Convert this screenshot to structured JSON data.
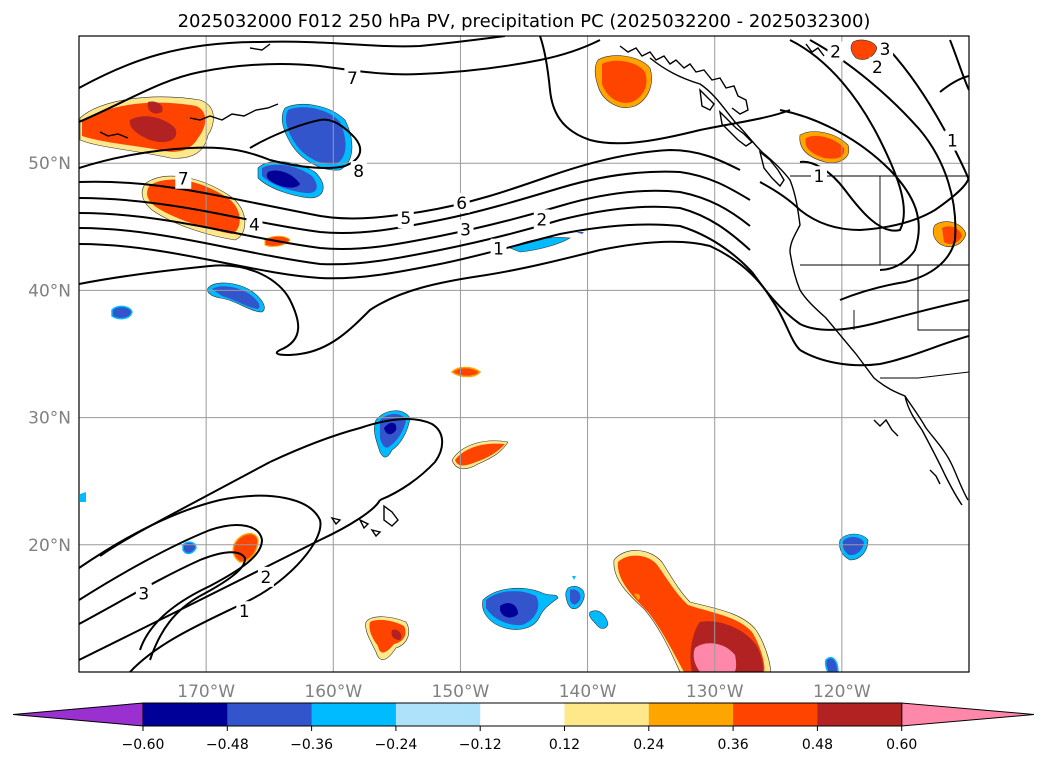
{
  "title": "2025032000 F012 250 hPa PV, precipitation PC (2025032200 - 2025032300)",
  "chart_data": {
    "type": "map",
    "extent": {
      "lon_min": -180,
      "lon_max": -110,
      "lat_min": 10,
      "lat_max": 60
    },
    "lat_ticks": [
      {
        "lat": 50,
        "label": "50°N"
      },
      {
        "lat": 40,
        "label": "40°N"
      },
      {
        "lat": 30,
        "label": "30°N"
      },
      {
        "lat": 20,
        "label": "20°N"
      }
    ],
    "lon_ticks": [
      {
        "lon": -170,
        "label": "170°W"
      },
      {
        "lon": -160,
        "label": "160°W"
      },
      {
        "lon": -150,
        "label": "150°W"
      },
      {
        "lon": -140,
        "label": "140°W"
      },
      {
        "lon": -130,
        "label": "130°W"
      },
      {
        "lon": -120,
        "label": "120°W"
      }
    ],
    "grid": true,
    "colorbar": {
      "ticks": [
        "−0.60",
        "−0.48",
        "−0.36",
        "−0.24",
        "−0.12",
        "0.12",
        "0.24",
        "0.36",
        "0.48",
        "0.60"
      ],
      "colors": {
        "under": "#9b30d0",
        "bins": [
          "#9b30d0",
          "#000099",
          "#3355cc",
          "#00bbff",
          "#aee2fa",
          "#ffffff",
          "#ffe88a",
          "#ffa500",
          "#ff4400",
          "#b22222",
          "#ff88aa"
        ],
        "over": "#ff88aa"
      },
      "extend": "both"
    },
    "pv_contour_labels": [
      {
        "text": "7",
        "lon": -158.5,
        "lat": 56.6
      },
      {
        "text": "8",
        "lon": -158.0,
        "lat": 49.3
      },
      {
        "text": "7",
        "lon": -171.8,
        "lat": 48.7
      },
      {
        "text": "6",
        "lon": -149.9,
        "lat": 46.8
      },
      {
        "text": "5",
        "lon": -154.3,
        "lat": 45.6
      },
      {
        "text": "4",
        "lon": -166.2,
        "lat": 45.1
      },
      {
        "text": "3",
        "lon": -149.6,
        "lat": 44.7
      },
      {
        "text": "2",
        "lon": -143.6,
        "lat": 45.5
      },
      {
        "text": "1",
        "lon": -147.0,
        "lat": 43.2
      },
      {
        "text": "2",
        "lon": -120.5,
        "lat": 58.7
      },
      {
        "text": "2",
        "lon": -117.2,
        "lat": 57.5
      },
      {
        "text": "3",
        "lon": -116.6,
        "lat": 58.9
      },
      {
        "text": "1",
        "lon": -111.3,
        "lat": 51.7
      },
      {
        "text": "1",
        "lon": -121.8,
        "lat": 48.9
      },
      {
        "text": "3",
        "lon": -174.9,
        "lat": 16.1
      },
      {
        "text": "2",
        "lon": -165.3,
        "lat": 17.4
      },
      {
        "text": "1",
        "lon": -167.0,
        "lat": 14.7
      }
    ]
  }
}
